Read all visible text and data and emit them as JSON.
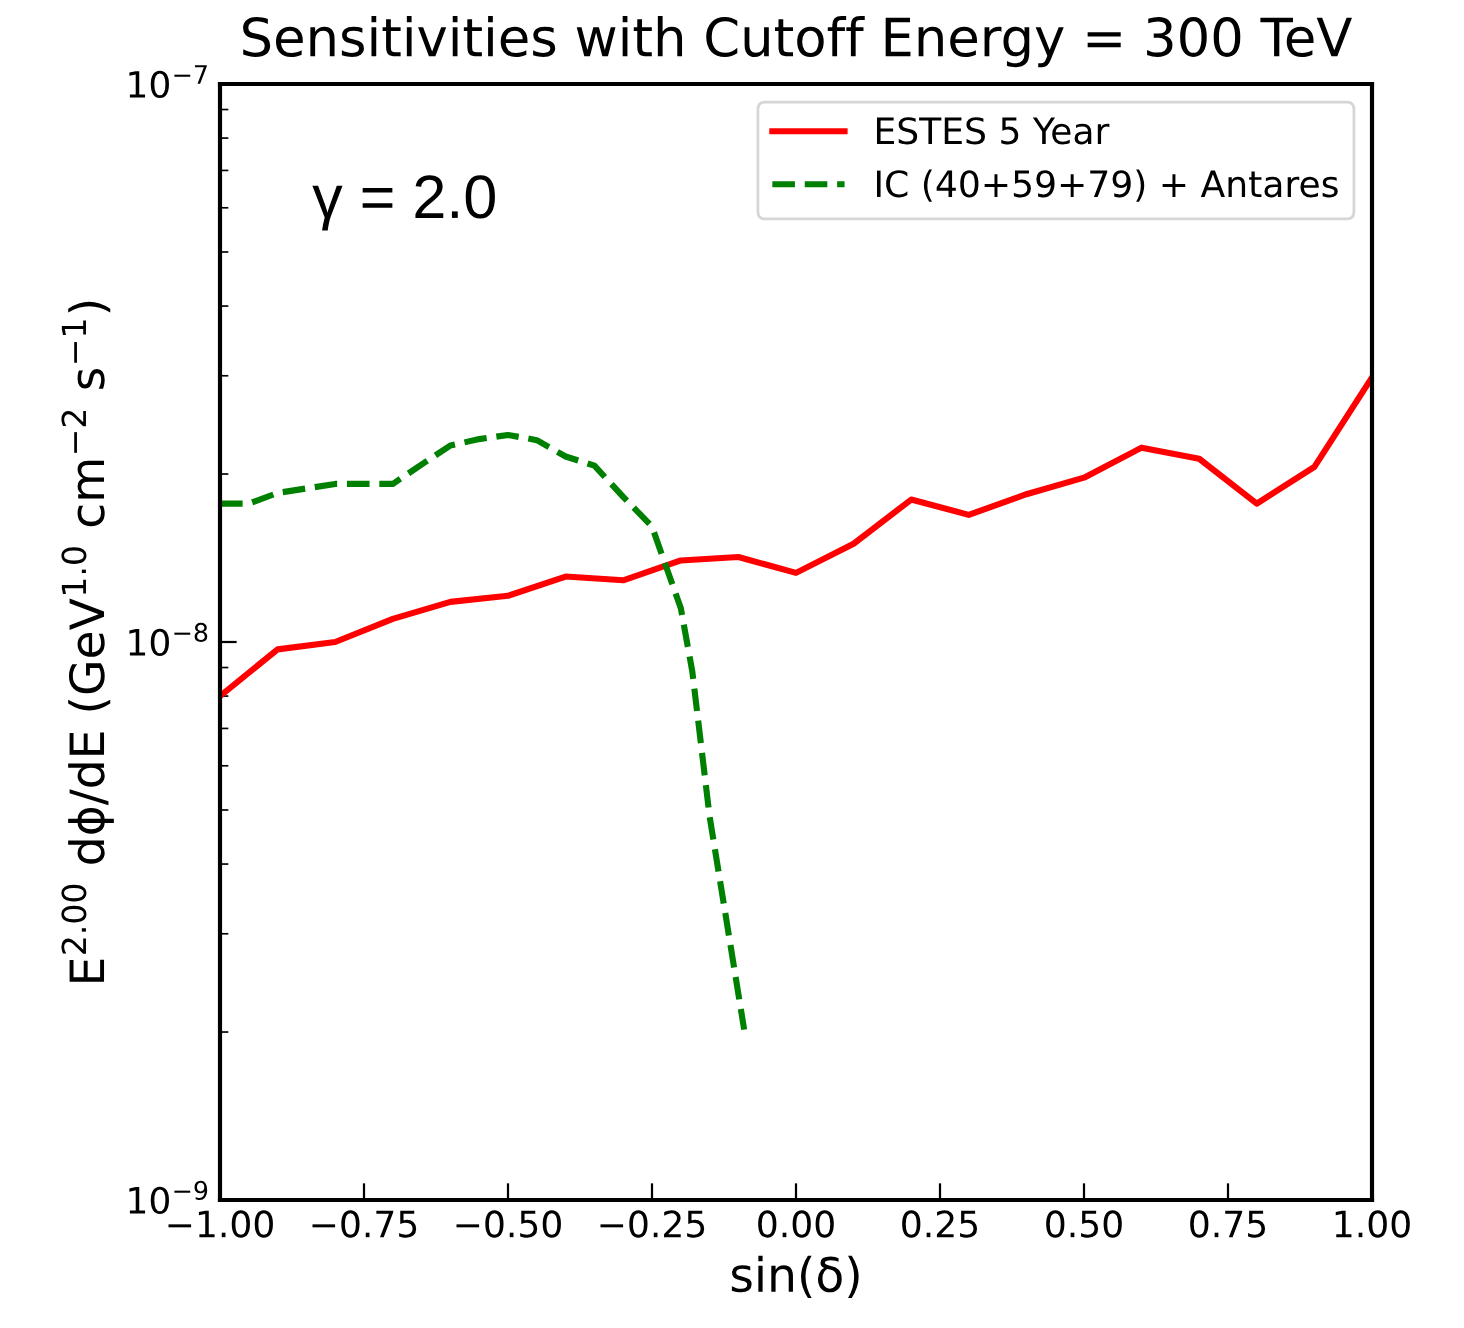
{
  "chart_data": {
    "type": "line",
    "title": "Sensitivities with Cutoff Energy = 300 TeV",
    "xlabel": "sin(δ)",
    "ylabel": "E$^{2.00}$ dϕ/dE (GeV$^{1.0}$ cm$^{−2}$ s$^{−1}$)",
    "annotations": [
      "γ = 2.0"
    ],
    "log": "y",
    "xlim": [
      -1,
      1
    ],
    "ylim": [
      1e-09,
      1e-07
    ],
    "xticks": [
      {
        "value": -1,
        "label": "−1.00"
      },
      {
        "value": -0.75,
        "label": "−0.75"
      },
      {
        "value": -0.5,
        "label": "−0.50"
      },
      {
        "value": -0.25,
        "label": "−0.25"
      },
      {
        "value": 0,
        "label": "0.00"
      },
      {
        "value": 0.25,
        "label": "0.25"
      },
      {
        "value": 0.5,
        "label": "0.50"
      },
      {
        "value": 0.75,
        "label": "0.75"
      },
      {
        "value": 1,
        "label": "1.00"
      }
    ],
    "yticks": [
      {
        "value": 1e-09,
        "label": "10$^{−9}$"
      },
      {
        "value": 1e-08,
        "label": "10$^{−8}$"
      },
      {
        "value": 1e-07,
        "label": "10$^{−7}$"
      }
    ],
    "grid": false,
    "legend": "top right",
    "series": [
      {
        "name": "ESTES 5 Year",
        "color": "#ff0000",
        "line_style": "solid",
        "x": [
          -1,
          -0.9,
          -0.8,
          -0.7,
          -0.6,
          -0.5,
          -0.4,
          -0.3,
          -0.2,
          -0.1,
          0,
          0.1,
          0.2,
          0.3,
          0.4,
          0.5,
          0.6,
          0.7,
          0.8,
          0.9,
          1
        ],
        "values": [
          8e-09,
          9.7e-09,
          1e-08,
          1.1e-08,
          1.18e-08,
          1.21e-08,
          1.31e-08,
          1.29e-08,
          1.4e-08,
          1.42e-08,
          1.33e-08,
          1.5e-08,
          1.8e-08,
          1.69e-08,
          1.84e-08,
          1.97e-08,
          2.23e-08,
          2.13e-08,
          1.77e-08,
          2.06e-08,
          2.98e-08
        ]
      },
      {
        "name": "IC (40+59+79) + Antares",
        "color": "#008000",
        "line_style": "dashed",
        "x": [
          -1,
          -0.95,
          -0.9,
          -0.8,
          -0.7,
          -0.65,
          -0.6,
          -0.55,
          -0.5,
          -0.45,
          -0.4,
          -0.35,
          -0.3,
          -0.25,
          -0.2,
          -0.18,
          -0.15,
          -0.09
        ],
        "values": [
          1.77e-08,
          1.77e-08,
          1.85e-08,
          1.92e-08,
          1.92e-08,
          2.08e-08,
          2.25e-08,
          2.31e-08,
          2.35e-08,
          2.3e-08,
          2.15e-08,
          2.07e-08,
          1.82e-08,
          1.61e-08,
          1.15e-08,
          8.85e-09,
          4.87e-09,
          2.02e-09
        ]
      }
    ]
  }
}
